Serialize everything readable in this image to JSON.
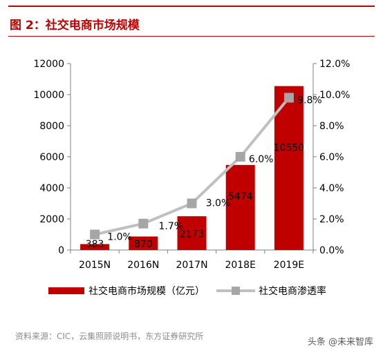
{
  "header": {
    "title": "图 2：社交电商市场规模"
  },
  "footer": {
    "source": "资料来源：CIC，云集照顾说明书，东方证券研究所",
    "watermark": "头条 @未来智库"
  },
  "colors": {
    "bar": "#c00000",
    "line": "#c0c0c0",
    "marker": "#a6a6a6",
    "accent": "#c00000"
  },
  "chart_data": {
    "type": "bar",
    "categories": [
      "2015N",
      "2016N",
      "2017N",
      "2018E",
      "2019E"
    ],
    "series": [
      {
        "name": "社交电商市场规模（亿元）",
        "type": "bar",
        "axis": "left",
        "values": [
          383,
          870,
          2173,
          5474,
          10550
        ],
        "labels": [
          "383",
          "870",
          "2173",
          "5474",
          "10550"
        ]
      },
      {
        "name": "社交电商渗透率",
        "type": "line",
        "axis": "right",
        "values": [
          1.0,
          1.7,
          3.0,
          6.0,
          9.8
        ],
        "labels": [
          "1.0%",
          "1.7%",
          "3.0%",
          "6.0%",
          "9.8%"
        ]
      }
    ],
    "y_left": {
      "min": 0,
      "max": 12000,
      "ticks": [
        0,
        2000,
        4000,
        6000,
        8000,
        10000,
        12000
      ],
      "tick_labels": [
        "0",
        "2000",
        "4000",
        "6000",
        "8000",
        "10000",
        "12000"
      ]
    },
    "y_right": {
      "min": 0,
      "max": 12,
      "ticks": [
        0,
        2,
        4,
        6,
        8,
        10,
        12
      ],
      "tick_labels": [
        "0.0%",
        "2.0%",
        "4.0%",
        "6.0%",
        "8.0%",
        "10.0%",
        "12.0%"
      ]
    },
    "grid": false,
    "legend_position": "bottom"
  }
}
